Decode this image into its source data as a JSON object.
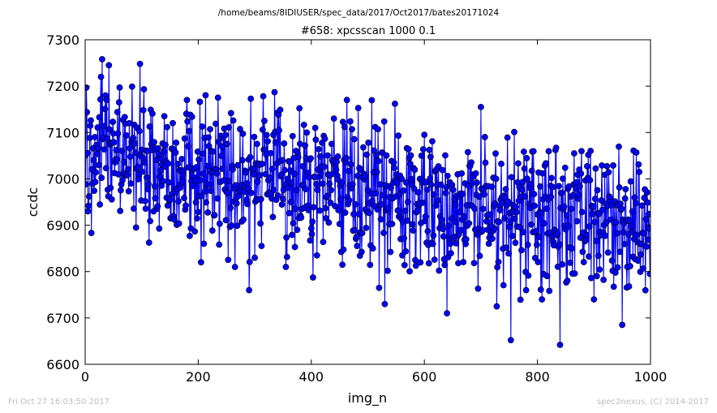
{
  "figure": {
    "suptitle": "/home/beams/8IDIUSER/spec_data/2017/Oct2017/bates20171024",
    "footer_left": "Fri Oct 27 16:03:50 2017",
    "footer_right": "spec2nexus, (C) 2014-2017"
  },
  "chart_data": {
    "type": "line",
    "title": "#658: xpcsscan 1000 0.1",
    "xlabel": "img_n",
    "ylabel": "ccdc",
    "xlim": [
      0,
      1000
    ],
    "ylim": [
      6600,
      7300
    ],
    "xticks": [
      0,
      200,
      400,
      600,
      800,
      1000
    ],
    "yticks": [
      6600,
      6700,
      6800,
      6900,
      7000,
      7100,
      7200,
      7300
    ],
    "series_color": "#0000ff",
    "marker": "circle",
    "n_points": 1000,
    "trend": "noisy, decreasing from about 7050 near img_n 0 to about 6880 near img_n 1000; values mostly between 6750 and 7150",
    "series": [
      {
        "x": [
          0,
          5,
          28,
          30,
          38,
          42,
          60,
          90,
          97,
          140,
          180,
          205,
          210,
          235,
          265,
          290,
          300,
          355,
          410,
          440,
          520,
          530,
          548,
          600,
          640,
          700,
          728,
          753,
          780,
          808,
          840,
          865,
          900,
          950,
          980,
          1000
        ],
        "y": [
          7050,
          6930,
          7220,
          7258,
          7170,
          7245,
          7165,
          6895,
          7248,
          7135,
          7170,
          6820,
          6860,
          7175,
          6810,
          6760,
          6830,
          6810,
          6835,
          7130,
          6765,
          6730,
          7162,
          7095,
          6710,
          7155,
          6725,
          6652,
          6760,
          6740,
          6642,
          7055,
          6740,
          6685,
          7015,
          6795
        ]
      }
    ]
  }
}
